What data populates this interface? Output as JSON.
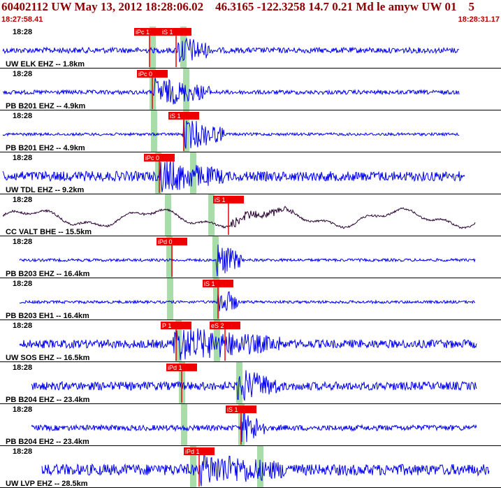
{
  "header": {
    "title": "60402112 UW May 13, 2012 18:28:06.02    46.3165 -122.3258 14.7 0.21 Md le amyw UW 01    5",
    "start_time": "18:27:58.41",
    "end_time": "18:28:31.17"
  },
  "colors": {
    "title": "#8b0000",
    "trace": "#0000ee",
    "broadband_trace": "#2a0033",
    "pick": "#ee0000",
    "window": "#a8dca8",
    "divider": "#000000"
  },
  "traces": [
    {
      "station": "UW ELK EHZ -- 1.8km",
      "time_label": "18:28",
      "picks": [
        {
          "label": "iPc 1"
        },
        {
          "label": "iS 1"
        }
      ]
    },
    {
      "station": "PB B201 EHZ -- 4.9km",
      "time_label": "18:28",
      "picks": [
        {
          "label": "iPc 0"
        }
      ]
    },
    {
      "station": "PB B201 EH2 -- 4.9km",
      "time_label": "18:28",
      "picks": [
        {
          "label": "iS 1"
        }
      ]
    },
    {
      "station": "UW TDL EHZ -- 9.2km",
      "time_label": "18:28",
      "picks": [
        {
          "label": "iPc 0"
        }
      ]
    },
    {
      "station": "CC VALT BHE -- 15.5km",
      "time_label": "18:28",
      "picks": [
        {
          "label": "iS 1"
        }
      ]
    },
    {
      "station": "PB B203 EHZ -- 16.4km",
      "time_label": "18:28",
      "picks": [
        {
          "label": "iPd 0"
        }
      ]
    },
    {
      "station": "PB B203 EH1 -- 16.4km",
      "time_label": "18:28",
      "picks": [
        {
          "label": "iS 1"
        }
      ]
    },
    {
      "station": "UW SOS EHZ -- 16.5km",
      "time_label": "18:28",
      "picks": [
        {
          "label": "P 1"
        },
        {
          "label": "eS 2"
        }
      ]
    },
    {
      "station": "PB B204 EHZ -- 23.4km",
      "time_label": "18:28",
      "picks": [
        {
          "label": "iPd 1"
        }
      ]
    },
    {
      "station": "PB B204 EH2 -- 23.4km",
      "time_label": "18:28",
      "picks": [
        {
          "label": "iS 1"
        }
      ]
    },
    {
      "station": "UW LVP EHZ -- 28.5km",
      "time_label": "18:28",
      "picks": [
        {
          "label": "iPd 1"
        }
      ]
    }
  ]
}
